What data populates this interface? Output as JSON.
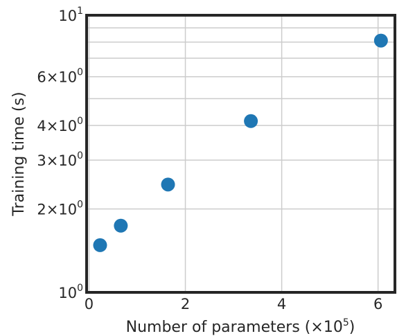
{
  "chart_data": {
    "type": "scatter",
    "xlabel_main": "Number of parameters (",
    "xlabel_mult": "×10",
    "xlabel_exp": "5",
    "xlabel_close": ")",
    "ylabel": "Training time (s)",
    "x_scale": "linear",
    "y_scale": "log",
    "xlim": [
      -0.05,
      6.35
    ],
    "ylim": [
      1.0,
      10.0
    ],
    "grid": true,
    "color": "#1f77b4",
    "x": [
      0.23,
      0.66,
      1.64,
      3.36,
      6.06
    ],
    "y": [
      1.48,
      1.74,
      2.45,
      4.15,
      8.1
    ],
    "x_ticks": [
      {
        "value": 0,
        "label": "0"
      },
      {
        "value": 2,
        "label": "2"
      },
      {
        "value": 4,
        "label": "4"
      },
      {
        "value": 6,
        "label": "6"
      }
    ],
    "y_ticks": [
      {
        "value": 1,
        "mant": "",
        "base": "10",
        "exp": "0"
      },
      {
        "value": 2,
        "mant": "2×",
        "base": "10",
        "exp": "0"
      },
      {
        "value": 3,
        "mant": "3×",
        "base": "10",
        "exp": "0"
      },
      {
        "value": 4,
        "mant": "4×",
        "base": "10",
        "exp": "0"
      },
      {
        "value": 6,
        "mant": "6×",
        "base": "10",
        "exp": "0"
      },
      {
        "value": 10,
        "mant": "",
        "base": "10",
        "exp": "1"
      }
    ],
    "y_minor_grid": [
      5,
      7,
      8,
      9
    ]
  }
}
